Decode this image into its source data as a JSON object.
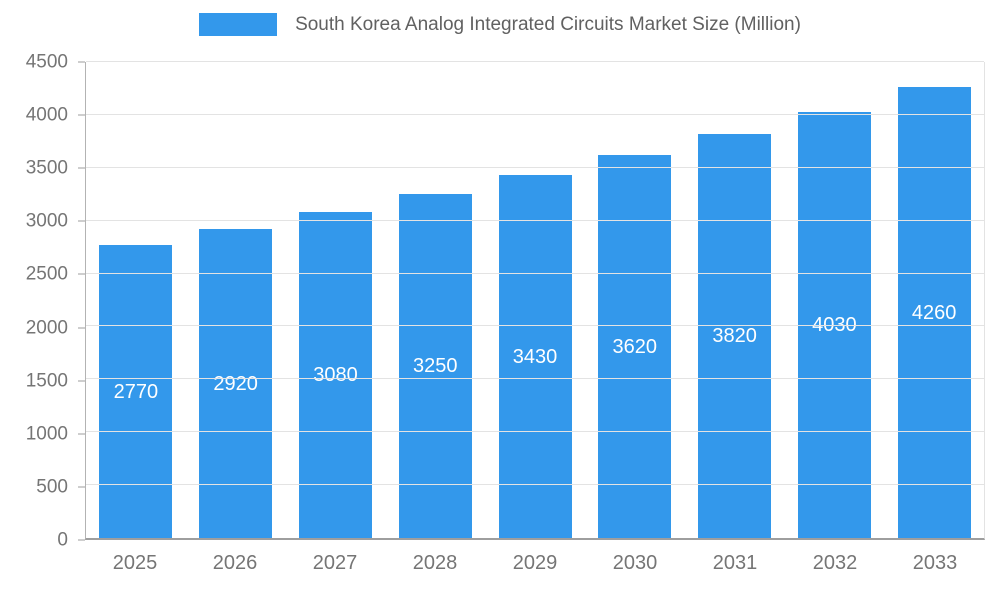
{
  "legend": {
    "title": "South Korea Analog Integrated Circuits Market Size (Million)"
  },
  "chart_data": {
    "type": "bar",
    "title": "South Korea Analog Integrated Circuits Market Size (Million)",
    "categories": [
      "2025",
      "2026",
      "2027",
      "2028",
      "2029",
      "2030",
      "2031",
      "2032",
      "2033"
    ],
    "values": [
      2770,
      2920,
      3080,
      3250,
      3430,
      3620,
      3820,
      4030,
      4260
    ],
    "xlabel": "",
    "ylabel": "",
    "ylim": [
      0,
      4500
    ],
    "ytick_step": 500,
    "grid": true,
    "legend_position": "top",
    "bar_color": "#3398EB",
    "value_label_color": "#ffffff",
    "axis_label_color": "#757575",
    "title_color": "#616161",
    "grid_color": "#e3e3e3"
  }
}
